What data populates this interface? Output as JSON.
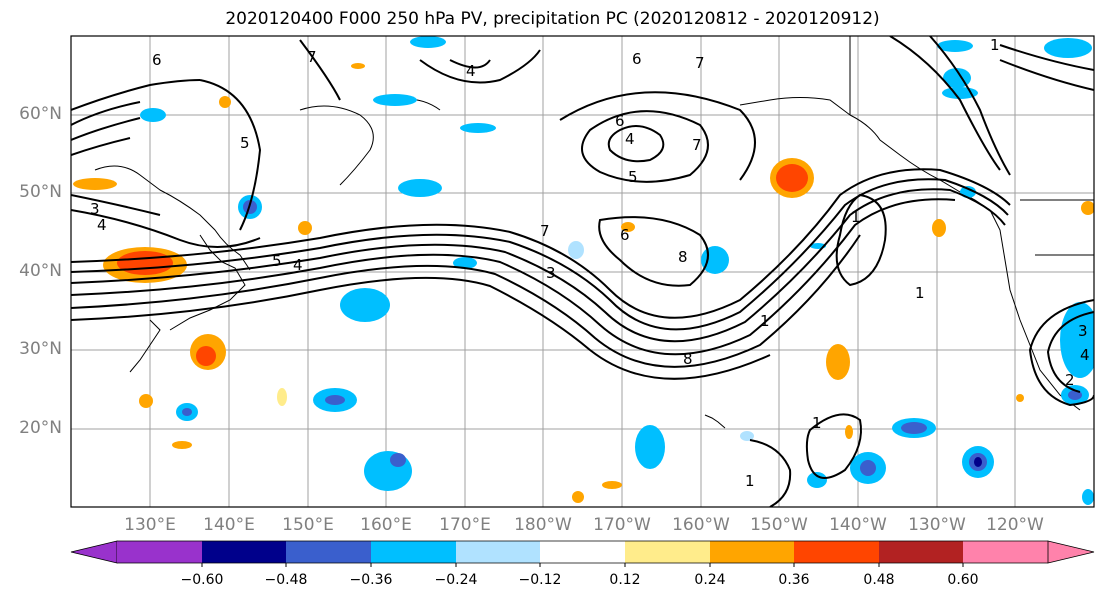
{
  "title": "2020120400 F000 250 hPa PV, precipitation PC (2020120812 - 2020120912)",
  "lat_labels": [
    "60°N",
    "50°N",
    "40°N",
    "30°N",
    "20°N"
  ],
  "lon_labels": [
    "130°E",
    "140°E",
    "150°E",
    "160°E",
    "170°E",
    "180°W",
    "170°W",
    "160°W",
    "150°W",
    "140°W",
    "130°W",
    "120°W"
  ],
  "colorbar": {
    "ticks": [
      "−0.60",
      "−0.48",
      "−0.36",
      "−0.24",
      "−0.12",
      "0.12",
      "0.24",
      "0.36",
      "0.48",
      "0.60"
    ],
    "colors": [
      "#9932cc",
      "#00008b",
      "#3a5fcd",
      "#00bfff",
      "#b0e2ff",
      "#ffffff",
      "#ffec8b",
      "#ffa500",
      "#ff4500",
      "#b22222",
      "#ff82ab"
    ]
  },
  "contour_labels": [
    "6",
    "7",
    "4",
    "6",
    "7",
    "6",
    "7",
    "5",
    "3",
    "4",
    "5",
    "4",
    "6",
    "4",
    "5",
    "8",
    "7",
    "3",
    "8",
    "1",
    "1",
    "1",
    "1",
    "1",
    "1",
    "2",
    "3",
    "4"
  ]
}
